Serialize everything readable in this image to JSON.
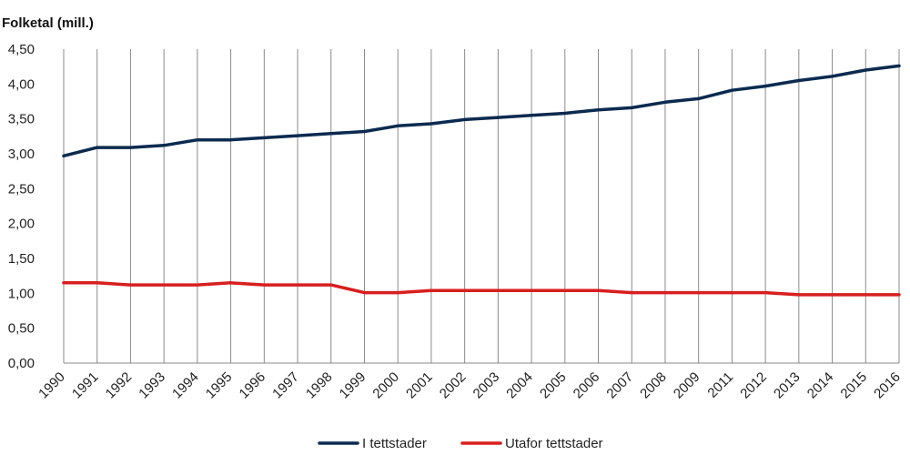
{
  "chart_data": {
    "type": "line",
    "title": "",
    "ylabel": "Folketal (mill.)",
    "xlabel": "",
    "ylim": [
      0,
      4.5
    ],
    "yticks": [
      "0,00",
      "0,50",
      "1,00",
      "1,50",
      "2,00",
      "2,50",
      "3,00",
      "3,50",
      "4,00",
      "4,50"
    ],
    "categories": [
      "1990",
      "1991",
      "1992",
      "1993",
      "1994",
      "1995",
      "1996",
      "1997",
      "1998",
      "1999",
      "2000",
      "2001",
      "2002",
      "2003",
      "2004",
      "2005",
      "2006",
      "2007",
      "2008",
      "2009",
      "2011",
      "2012",
      "2013",
      "2014",
      "2015",
      "2016"
    ],
    "grid": "vertical",
    "legend_position": "bottom-center",
    "series": [
      {
        "name": "I tettstader",
        "color": "#0b2a4f",
        "values": [
          2.97,
          3.09,
          3.09,
          3.12,
          3.2,
          3.2,
          3.23,
          3.26,
          3.29,
          3.32,
          3.4,
          3.43,
          3.49,
          3.52,
          3.55,
          3.58,
          3.63,
          3.66,
          3.74,
          3.79,
          3.91,
          3.97,
          4.05,
          4.11,
          4.2,
          4.26
        ]
      },
      {
        "name": "Utafor tettstader",
        "color": "#d81e1e",
        "values": [
          1.15,
          1.15,
          1.12,
          1.12,
          1.12,
          1.15,
          1.12,
          1.12,
          1.12,
          1.01,
          1.01,
          1.04,
          1.04,
          1.04,
          1.04,
          1.04,
          1.04,
          1.01,
          1.01,
          1.01,
          1.01,
          1.01,
          0.98,
          0.98,
          0.98,
          0.98
        ]
      }
    ]
  }
}
